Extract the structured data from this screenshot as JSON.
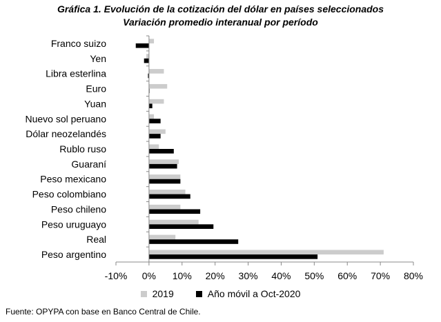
{
  "title": "Gráfica 1. Evolución de la cotización del dólar en países seleccionados",
  "subtitle": "Variación promedio interanual por período",
  "source": "Fuente: OPYPA con base en Banco Central de Chile.",
  "colors": {
    "series_2019": "#cccccc",
    "series_ytd": "#000000",
    "axis": "#888888"
  },
  "chart_data": {
    "type": "bar",
    "orientation": "horizontal",
    "title": "Gráfica 1. Evolución de la cotización del dólar en países seleccionados",
    "subtitle": "Variación promedio interanual por período",
    "categories": [
      "Franco suizo",
      "Yen",
      "Libra esterlina",
      "Euro",
      "Yuan",
      "Nuevo sol peruano",
      "Dólar neozelandés",
      "Rublo ruso",
      "Guaraní",
      "Peso mexicano",
      "Peso colombiano",
      "Peso chileno",
      "Peso uruguayo",
      "Real",
      "Peso argentino"
    ],
    "series": [
      {
        "name": "2019",
        "values": [
          1.5,
          -0.8,
          4.5,
          5.5,
          4.5,
          1.5,
          5.0,
          3.0,
          9.0,
          9.5,
          11.0,
          9.5,
          15.0,
          8.0,
          71.0
        ]
      },
      {
        "name": "Año móvil a Oct-2020",
        "values": [
          -4.0,
          -1.5,
          -0.3,
          0.0,
          1.0,
          3.5,
          3.5,
          7.5,
          8.5,
          9.5,
          12.5,
          15.5,
          19.5,
          27.0,
          51.0
        ]
      }
    ],
    "xlim": [
      -10,
      80
    ],
    "x_ticks": [
      "-10%",
      "0%",
      "10%",
      "20%",
      "30%",
      "40%",
      "50%",
      "60%",
      "70%",
      "80%"
    ],
    "x_tick_values": [
      -10,
      0,
      10,
      20,
      30,
      40,
      50,
      60,
      70,
      80
    ],
    "legend_position": "bottom",
    "grid": false
  }
}
